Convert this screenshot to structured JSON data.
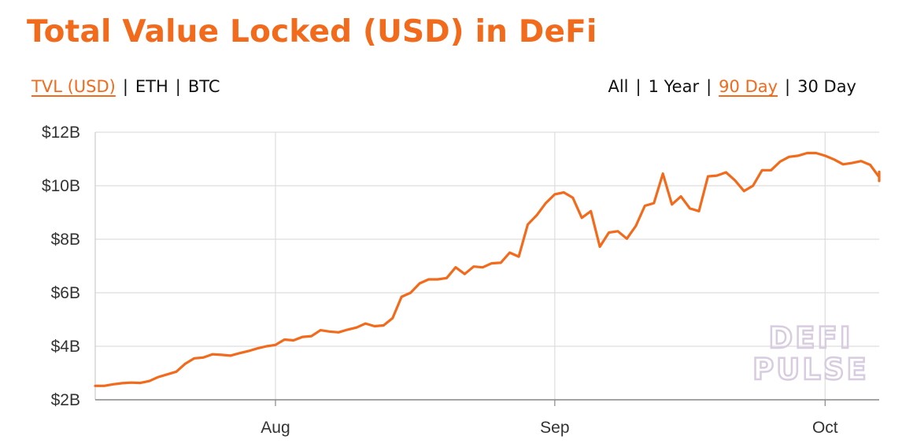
{
  "title": "Total Value Locked (USD) in DeFi",
  "metric_toggle": [
    {
      "label": "TVL (USD)",
      "active": true
    },
    {
      "label": "ETH",
      "active": false
    },
    {
      "label": "BTC",
      "active": false
    }
  ],
  "range_toggle": [
    {
      "label": "All",
      "active": false
    },
    {
      "label": "1 Year",
      "active": false
    },
    {
      "label": "90 Day",
      "active": true
    },
    {
      "label": "30 Day",
      "active": false
    }
  ],
  "separator": "|",
  "watermark": [
    "DEFI",
    "PULSE"
  ],
  "colors": {
    "accent": "#f26b1d",
    "grid": "#dddddd",
    "watermark": "#d8cce0"
  },
  "chart_data": {
    "type": "line",
    "title": "Total Value Locked (USD) in DeFi",
    "xlabel": "",
    "ylabel": "",
    "x_unit": "date (2020)",
    "x_range": [
      "2020-07-12",
      "2020-10-07"
    ],
    "ylim": [
      2,
      12
    ],
    "y_unit": "billion USD",
    "y_ticks": [
      {
        "value": 2,
        "label": "$2B"
      },
      {
        "value": 4,
        "label": "$4B"
      },
      {
        "value": 6,
        "label": "$6B"
      },
      {
        "value": 8,
        "label": "$8B"
      },
      {
        "value": 10,
        "label": "$10B"
      },
      {
        "value": 12,
        "label": "$12B"
      }
    ],
    "x_ticks": [
      {
        "value": "2020-08-01",
        "label": "Aug"
      },
      {
        "value": "2020-09-01",
        "label": "Sep"
      },
      {
        "value": "2020-10-01",
        "label": "Oct"
      }
    ],
    "grid": true,
    "legend": "none",
    "series": [
      {
        "color": "#f26b1d",
        "points": [
          [
            "2020-07-12",
            2.52
          ],
          [
            "2020-07-13",
            2.52
          ],
          [
            "2020-07-14",
            2.58
          ],
          [
            "2020-07-15",
            2.62
          ],
          [
            "2020-07-16",
            2.64
          ],
          [
            "2020-07-17",
            2.63
          ],
          [
            "2020-07-18",
            2.7
          ],
          [
            "2020-07-19",
            2.85
          ],
          [
            "2020-07-20",
            2.95
          ],
          [
            "2020-07-21",
            3.05
          ],
          [
            "2020-07-22",
            3.35
          ],
          [
            "2020-07-23",
            3.55
          ],
          [
            "2020-07-24",
            3.58
          ],
          [
            "2020-07-25",
            3.7
          ],
          [
            "2020-07-26",
            3.68
          ],
          [
            "2020-07-27",
            3.65
          ],
          [
            "2020-07-28",
            3.74
          ],
          [
            "2020-07-29",
            3.82
          ],
          [
            "2020-07-30",
            3.92
          ],
          [
            "2020-07-31",
            4.0
          ],
          [
            "2020-08-01",
            4.05
          ],
          [
            "2020-08-02",
            4.25
          ],
          [
            "2020-08-03",
            4.22
          ],
          [
            "2020-08-04",
            4.35
          ],
          [
            "2020-08-05",
            4.38
          ],
          [
            "2020-08-06",
            4.6
          ],
          [
            "2020-08-07",
            4.55
          ],
          [
            "2020-08-08",
            4.52
          ],
          [
            "2020-08-09",
            4.62
          ],
          [
            "2020-08-10",
            4.7
          ],
          [
            "2020-08-11",
            4.85
          ],
          [
            "2020-08-12",
            4.75
          ],
          [
            "2020-08-13",
            4.78
          ],
          [
            "2020-08-14",
            5.05
          ],
          [
            "2020-08-15",
            5.85
          ],
          [
            "2020-08-16",
            6.0
          ],
          [
            "2020-08-17",
            6.35
          ],
          [
            "2020-08-18",
            6.5
          ],
          [
            "2020-08-19",
            6.5
          ],
          [
            "2020-08-20",
            6.55
          ],
          [
            "2020-08-21",
            6.95
          ],
          [
            "2020-08-22",
            6.7
          ],
          [
            "2020-08-23",
            6.98
          ],
          [
            "2020-08-24",
            6.95
          ],
          [
            "2020-08-25",
            7.1
          ],
          [
            "2020-08-26",
            7.12
          ],
          [
            "2020-08-27",
            7.5
          ],
          [
            "2020-08-28",
            7.35
          ],
          [
            "2020-08-29",
            8.55
          ],
          [
            "2020-08-30",
            8.9
          ],
          [
            "2020-08-31",
            9.35
          ],
          [
            "2020-09-01",
            9.68
          ],
          [
            "2020-09-02",
            9.75
          ],
          [
            "2020-09-03",
            9.55
          ],
          [
            "2020-09-04",
            8.8
          ],
          [
            "2020-09-05",
            9.05
          ],
          [
            "2020-09-06",
            7.72
          ],
          [
            "2020-09-07",
            8.25
          ],
          [
            "2020-09-08",
            8.3
          ],
          [
            "2020-09-09",
            8.02
          ],
          [
            "2020-09-10",
            8.5
          ],
          [
            "2020-09-11",
            9.25
          ],
          [
            "2020-09-12",
            9.35
          ],
          [
            "2020-09-13",
            10.45
          ],
          [
            "2020-09-14",
            9.3
          ],
          [
            "2020-09-15",
            9.6
          ],
          [
            "2020-09-16",
            9.15
          ],
          [
            "2020-09-17",
            9.05
          ],
          [
            "2020-09-18",
            10.35
          ],
          [
            "2020-09-19",
            10.38
          ],
          [
            "2020-09-20",
            10.5
          ],
          [
            "2020-09-21",
            10.2
          ],
          [
            "2020-09-22",
            9.8
          ],
          [
            "2020-09-23",
            10.0
          ],
          [
            "2020-09-24",
            10.58
          ],
          [
            "2020-09-25",
            10.58
          ],
          [
            "2020-09-26",
            10.9
          ],
          [
            "2020-09-27",
            11.08
          ],
          [
            "2020-09-28",
            11.12
          ],
          [
            "2020-09-29",
            11.22
          ],
          [
            "2020-09-30",
            11.22
          ],
          [
            "2020-10-01",
            11.12
          ],
          [
            "2020-10-02",
            10.98
          ],
          [
            "2020-10-03",
            10.8
          ],
          [
            "2020-10-04",
            10.85
          ],
          [
            "2020-10-05",
            10.92
          ],
          [
            "2020-10-06",
            10.78
          ],
          [
            "2020-10-07",
            10.32
          ],
          [
            "2020-10-08",
            10.18
          ],
          [
            "2020-10-09",
            10.52
          ]
        ]
      }
    ]
  }
}
